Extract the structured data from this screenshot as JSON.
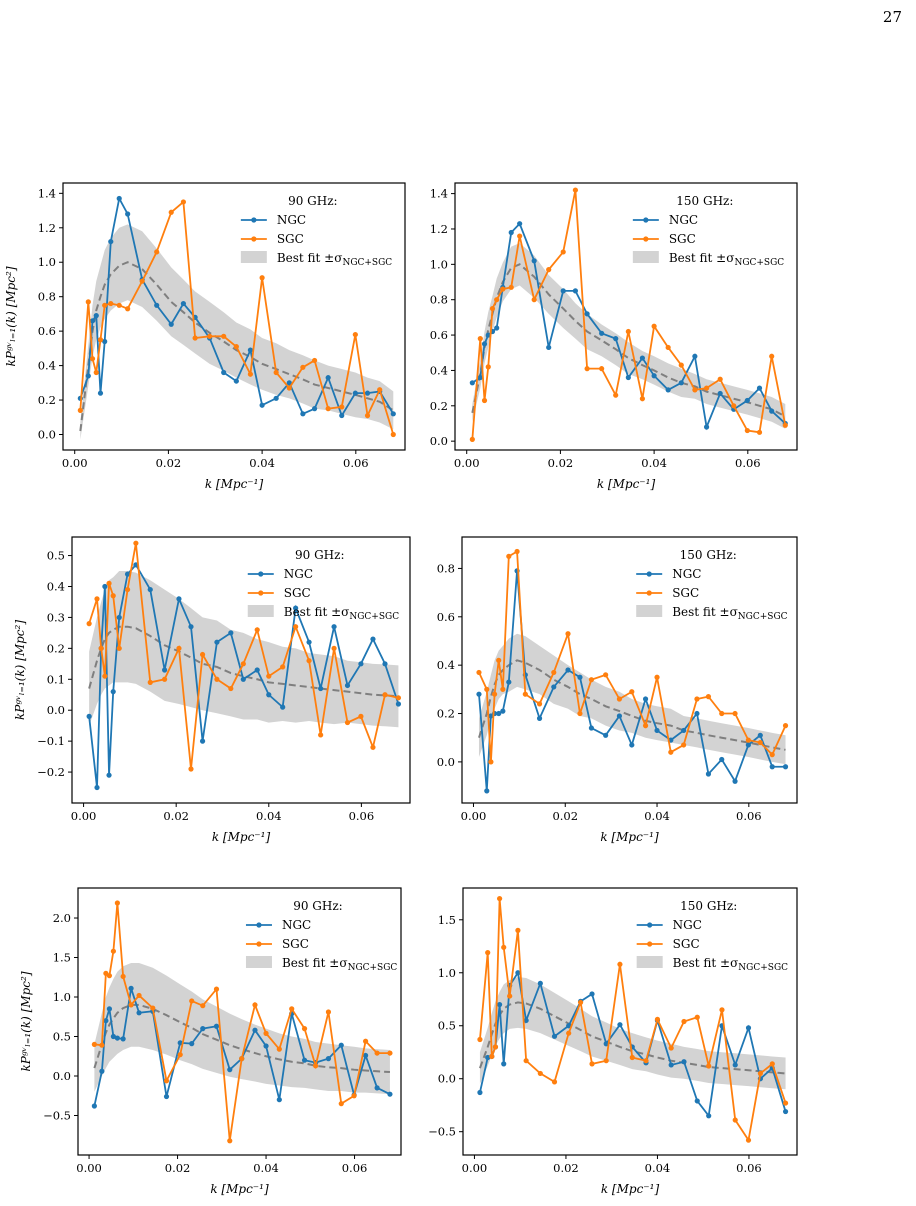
{
  "page": {
    "number": "27"
  },
  "legend": {
    "ngc": "NGC",
    "sgc": "SGC",
    "band_prefix": "Best fit ±σ",
    "band_sub": "NGC+SGC"
  },
  "colors": {
    "ngc": "#1f77b4",
    "sgc": "#ff7f0e",
    "band": "#d3d3d3",
    "fit": "#7f7f7f"
  },
  "chart_data": [
    {
      "type": "line",
      "title": "90 GHz:",
      "xlabel": "k [Mpc⁻¹]",
      "ylabel": "kPᵍᵛₗ₌₁(k) [Mpc²]",
      "xlim": [
        -0.0025,
        0.0705
      ],
      "ylim": [
        -0.09,
        1.46
      ],
      "xticks": [
        0.0,
        0.02,
        0.04,
        0.06
      ],
      "xtick_labels": [
        "0.00",
        "0.02",
        "0.04",
        "0.06"
      ],
      "yticks": [
        0.0,
        0.2,
        0.4,
        0.6,
        0.8,
        1.0,
        1.2,
        1.4
      ],
      "ytick_labels": [
        "0.0",
        "0.2",
        "0.4",
        "0.6",
        "0.8",
        "1.0",
        "1.2",
        "1.4"
      ],
      "legend_position": "upper-right",
      "x": [
        0.0012,
        0.0029,
        0.0038,
        0.0046,
        0.0055,
        0.0064,
        0.0077,
        0.0095,
        0.0113,
        0.0144,
        0.0175,
        0.0206,
        0.0232,
        0.0257,
        0.0288,
        0.0318,
        0.0345,
        0.0375,
        0.04,
        0.043,
        0.0458,
        0.0487,
        0.0512,
        0.0541,
        0.057,
        0.0599,
        0.0625,
        0.0651,
        0.068
      ],
      "series": [
        {
          "name": "NGC",
          "values": [
            0.21,
            0.34,
            0.66,
            0.69,
            0.24,
            0.54,
            1.12,
            1.37,
            1.28,
            0.9,
            0.75,
            0.64,
            0.76,
            0.68,
            0.56,
            0.36,
            0.31,
            0.49,
            0.17,
            0.21,
            0.3,
            0.12,
            0.15,
            0.33,
            0.11,
            0.24,
            0.24,
            0.25,
            0.12
          ]
        },
        {
          "name": "SGC",
          "values": [
            0.14,
            0.77,
            0.44,
            0.36,
            0.55,
            0.75,
            0.76,
            0.75,
            0.73,
            0.89,
            1.06,
            1.29,
            1.35,
            0.56,
            0.57,
            0.57,
            0.51,
            0.35,
            0.91,
            0.36,
            0.27,
            0.39,
            0.43,
            0.15,
            0.16,
            0.58,
            0.11,
            0.26,
            0.0
          ]
        }
      ],
      "fit": [
        0.02,
        0.4,
        0.6,
        0.72,
        0.8,
        0.87,
        0.93,
        0.98,
        1.0,
        0.96,
        0.87,
        0.77,
        0.71,
        0.65,
        0.59,
        0.54,
        0.49,
        0.45,
        0.41,
        0.38,
        0.35,
        0.32,
        0.29,
        0.27,
        0.25,
        0.23,
        0.21,
        0.19,
        0.14
      ],
      "band_halfwidth": [
        0.05,
        0.12,
        0.15,
        0.17,
        0.18,
        0.2,
        0.21,
        0.22,
        0.22,
        0.22,
        0.21,
        0.2,
        0.19,
        0.18,
        0.18,
        0.17,
        0.16,
        0.16,
        0.15,
        0.15,
        0.14,
        0.14,
        0.14,
        0.13,
        0.13,
        0.13,
        0.12,
        0.12,
        0.11
      ]
    },
    {
      "type": "line",
      "title": "150 GHz:",
      "xlabel": "k [Mpc⁻¹]",
      "ylabel": "",
      "xlim": [
        -0.0025,
        0.0705
      ],
      "ylim": [
        -0.05,
        1.46
      ],
      "xticks": [
        0.0,
        0.02,
        0.04,
        0.06
      ],
      "xtick_labels": [
        "0.00",
        "0.02",
        "0.04",
        "0.06"
      ],
      "yticks": [
        0.0,
        0.2,
        0.4,
        0.6,
        0.8,
        1.0,
        1.2,
        1.4
      ],
      "ytick_labels": [
        "0.0",
        "0.2",
        "0.4",
        "0.6",
        "0.8",
        "1.0",
        "1.2",
        "1.4"
      ],
      "legend_position": "upper-right",
      "x": [
        0.0012,
        0.0029,
        0.0038,
        0.0046,
        0.0055,
        0.0064,
        0.0077,
        0.0095,
        0.0113,
        0.0144,
        0.0175,
        0.0206,
        0.0232,
        0.0257,
        0.0288,
        0.0318,
        0.0345,
        0.0375,
        0.04,
        0.043,
        0.0458,
        0.0487,
        0.0512,
        0.0541,
        0.057,
        0.0599,
        0.0625,
        0.0651,
        0.068
      ],
      "series": [
        {
          "name": "NGC",
          "values": [
            0.33,
            0.36,
            0.55,
            0.6,
            0.62,
            0.64,
            0.87,
            1.18,
            1.23,
            1.02,
            0.53,
            0.85,
            0.85,
            0.72,
            0.61,
            0.58,
            0.36,
            0.47,
            0.37,
            0.29,
            0.33,
            0.48,
            0.08,
            0.27,
            0.18,
            0.23,
            0.3,
            0.17,
            0.1
          ]
        },
        {
          "name": "SGC",
          "values": [
            0.01,
            0.58,
            0.23,
            0.42,
            0.75,
            0.8,
            0.86,
            0.87,
            1.16,
            0.8,
            0.97,
            1.07,
            1.42,
            0.41,
            0.41,
            0.26,
            0.62,
            0.24,
            0.65,
            0.53,
            0.43,
            0.29,
            0.3,
            0.35,
            0.2,
            0.06,
            0.05,
            0.48,
            0.09
          ]
        }
      ],
      "fit": [
        0.16,
        0.38,
        0.53,
        0.63,
        0.72,
        0.81,
        0.9,
        0.98,
        1.0,
        0.93,
        0.83,
        0.75,
        0.68,
        0.62,
        0.57,
        0.52,
        0.47,
        0.43,
        0.4,
        0.36,
        0.33,
        0.31,
        0.28,
        0.26,
        0.24,
        0.22,
        0.2,
        0.18,
        0.14
      ],
      "band_halfwidth": [
        0.05,
        0.08,
        0.09,
        0.1,
        0.1,
        0.11,
        0.11,
        0.12,
        0.12,
        0.12,
        0.11,
        0.11,
        0.1,
        0.1,
        0.09,
        0.09,
        0.09,
        0.08,
        0.08,
        0.08,
        0.08,
        0.07,
        0.07,
        0.07,
        0.07,
        0.07,
        0.07,
        0.07,
        0.07
      ]
    },
    {
      "type": "line",
      "title": "90 GHz:",
      "xlabel": "k [Mpc⁻¹]",
      "ylabel": "kPᵍᵛₗ₌₁(k) [Mpc²]",
      "xlim": [
        -0.0025,
        0.0705
      ],
      "ylim": [
        -0.3,
        0.56
      ],
      "xticks": [
        0.0,
        0.02,
        0.04,
        0.06
      ],
      "xtick_labels": [
        "0.00",
        "0.02",
        "0.04",
        "0.06"
      ],
      "yticks": [
        -0.2,
        -0.1,
        0.0,
        0.1,
        0.2,
        0.3,
        0.4,
        0.5
      ],
      "ytick_labels": [
        "−0.2",
        "−0.1",
        "0.0",
        "0.1",
        "0.2",
        "0.3",
        "0.4",
        "0.5"
      ],
      "legend_position": "upper-right",
      "x": [
        0.0012,
        0.0029,
        0.0038,
        0.0046,
        0.0055,
        0.0064,
        0.0077,
        0.0095,
        0.0113,
        0.0144,
        0.0175,
        0.0206,
        0.0232,
        0.0257,
        0.0288,
        0.0318,
        0.0345,
        0.0375,
        0.04,
        0.043,
        0.0458,
        0.0487,
        0.0512,
        0.0541,
        0.057,
        0.0599,
        0.0625,
        0.0651,
        0.068
      ],
      "series": [
        {
          "name": "NGC",
          "values": [
            -0.02,
            -0.25,
            0.2,
            0.4,
            -0.21,
            0.06,
            0.3,
            0.44,
            0.47,
            0.39,
            0.13,
            0.36,
            0.27,
            -0.1,
            0.22,
            0.25,
            0.1,
            0.13,
            0.05,
            0.01,
            0.33,
            0.22,
            0.07,
            0.27,
            0.08,
            0.15,
            0.23,
            0.15,
            0.02
          ]
        },
        {
          "name": "SGC",
          "values": [
            0.28,
            0.36,
            0.2,
            0.11,
            0.41,
            0.37,
            0.2,
            0.39,
            0.54,
            0.09,
            0.1,
            0.2,
            -0.19,
            0.18,
            0.1,
            0.07,
            0.15,
            0.26,
            0.11,
            0.14,
            0.27,
            0.16,
            -0.08,
            0.2,
            -0.04,
            -0.02,
            -0.12,
            0.05,
            0.04
          ]
        }
      ],
      "fit": [
        0.07,
        0.16,
        0.2,
        0.23,
        0.25,
        0.26,
        0.27,
        0.27,
        0.265,
        0.24,
        0.21,
        0.19,
        0.17,
        0.15,
        0.14,
        0.12,
        0.11,
        0.1,
        0.09,
        0.085,
        0.08,
        0.075,
        0.07,
        0.065,
        0.06,
        0.055,
        0.05,
        0.048,
        0.045
      ],
      "band_halfwidth": [
        0.12,
        0.14,
        0.15,
        0.16,
        0.17,
        0.17,
        0.18,
        0.18,
        0.18,
        0.18,
        0.18,
        0.17,
        0.16,
        0.15,
        0.15,
        0.14,
        0.14,
        0.13,
        0.13,
        0.12,
        0.12,
        0.11,
        0.11,
        0.11,
        0.1,
        0.1,
        0.1,
        0.1,
        0.1
      ]
    },
    {
      "type": "line",
      "title": "150 GHz:",
      "xlabel": "k [Mpc⁻¹]",
      "ylabel": "",
      "xlim": [
        -0.0025,
        0.0705
      ],
      "ylim": [
        -0.17,
        0.93
      ],
      "xticks": [
        0.0,
        0.02,
        0.04,
        0.06
      ],
      "xtick_labels": [
        "0.00",
        "0.02",
        "0.04",
        "0.06"
      ],
      "yticks": [
        0.0,
        0.2,
        0.4,
        0.6,
        0.8
      ],
      "ytick_labels": [
        "0.0",
        "0.2",
        "0.4",
        "0.6",
        "0.8"
      ],
      "legend_position": "upper-right",
      "x": [
        0.0012,
        0.0029,
        0.0038,
        0.0046,
        0.0055,
        0.0064,
        0.0077,
        0.0095,
        0.0113,
        0.0144,
        0.0175,
        0.0206,
        0.0232,
        0.0257,
        0.0288,
        0.0318,
        0.0345,
        0.0375,
        0.04,
        0.043,
        0.0458,
        0.0487,
        0.0512,
        0.0541,
        0.057,
        0.0599,
        0.0625,
        0.0651,
        0.068
      ],
      "series": [
        {
          "name": "NGC",
          "values": [
            0.28,
            -0.12,
            0.19,
            0.2,
            0.2,
            0.21,
            0.33,
            0.79,
            0.36,
            0.18,
            0.31,
            0.38,
            0.35,
            0.14,
            0.11,
            0.19,
            0.07,
            0.26,
            0.13,
            0.09,
            0.13,
            0.2,
            -0.05,
            0.01,
            -0.08,
            0.07,
            0.11,
            -0.02,
            -0.02
          ]
        },
        {
          "name": "SGC",
          "values": [
            0.37,
            0.3,
            0.0,
            0.28,
            0.42,
            0.3,
            0.85,
            0.87,
            0.28,
            0.24,
            0.37,
            0.53,
            0.2,
            0.34,
            0.36,
            0.26,
            0.29,
            0.15,
            0.35,
            0.04,
            0.07,
            0.26,
            0.27,
            0.2,
            0.2,
            0.09,
            0.08,
            0.03,
            0.15
          ]
        }
      ],
      "fit": [
        0.1,
        0.2,
        0.27,
        0.32,
        0.36,
        0.38,
        0.4,
        0.42,
        0.41,
        0.38,
        0.34,
        0.31,
        0.28,
        0.26,
        0.23,
        0.21,
        0.19,
        0.17,
        0.16,
        0.15,
        0.13,
        0.12,
        0.11,
        0.1,
        0.09,
        0.08,
        0.07,
        0.06,
        0.05
      ],
      "band_halfwidth": [
        0.08,
        0.09,
        0.09,
        0.1,
        0.1,
        0.1,
        0.11,
        0.11,
        0.11,
        0.1,
        0.1,
        0.09,
        0.09,
        0.08,
        0.08,
        0.08,
        0.07,
        0.07,
        0.07,
        0.07,
        0.06,
        0.06,
        0.06,
        0.06,
        0.06,
        0.06,
        0.06,
        0.06,
        0.06
      ]
    },
    {
      "type": "line",
      "title": "90 GHz:",
      "xlabel": "k [Mpc⁻¹]",
      "ylabel": "kPᵍᵛₗ₌₁(k) [Mpc²]",
      "xlim": [
        -0.0025,
        0.0705
      ],
      "ylim": [
        -1.0,
        2.38
      ],
      "xticks": [
        0.0,
        0.02,
        0.04,
        0.06
      ],
      "xtick_labels": [
        "0.00",
        "0.02",
        "0.04",
        "0.06"
      ],
      "yticks": [
        -0.5,
        0.0,
        0.5,
        1.0,
        1.5,
        2.0
      ],
      "ytick_labels": [
        "−0.5",
        "0.0",
        "0.5",
        "1.0",
        "1.5",
        "2.0"
      ],
      "legend_position": "upper-right",
      "x": [
        0.0012,
        0.0029,
        0.0038,
        0.0046,
        0.0055,
        0.0064,
        0.0077,
        0.0095,
        0.0113,
        0.0144,
        0.0175,
        0.0206,
        0.0232,
        0.0257,
        0.0288,
        0.0318,
        0.0345,
        0.0375,
        0.04,
        0.043,
        0.0458,
        0.0487,
        0.0512,
        0.0541,
        0.057,
        0.0599,
        0.0625,
        0.0651,
        0.068
      ],
      "series": [
        {
          "name": "NGC",
          "values": [
            -0.38,
            0.06,
            0.7,
            0.85,
            0.5,
            0.48,
            0.47,
            1.11,
            0.8,
            0.82,
            -0.26,
            0.42,
            0.41,
            0.6,
            0.63,
            0.08,
            0.22,
            0.58,
            0.38,
            -0.3,
            0.79,
            0.2,
            0.17,
            0.22,
            0.39,
            -0.24,
            0.26,
            -0.15,
            -0.23
          ]
        },
        {
          "name": "SGC",
          "values": [
            0.4,
            0.39,
            1.3,
            1.27,
            1.58,
            2.19,
            1.26,
            0.9,
            1.02,
            0.86,
            -0.06,
            0.27,
            0.95,
            0.89,
            1.1,
            -0.82,
            0.22,
            0.9,
            0.54,
            0.34,
            0.85,
            0.6,
            0.13,
            0.81,
            -0.35,
            -0.25,
            0.44,
            0.29,
            0.29
          ]
        }
      ],
      "fit": [
        0.1,
        0.4,
        0.55,
        0.65,
        0.73,
        0.8,
        0.86,
        0.9,
        0.9,
        0.85,
        0.77,
        0.68,
        0.61,
        0.53,
        0.46,
        0.39,
        0.34,
        0.29,
        0.25,
        0.21,
        0.18,
        0.16,
        0.13,
        0.11,
        0.1,
        0.08,
        0.07,
        0.06,
        0.05
      ],
      "band_halfwidth": [
        0.3,
        0.4,
        0.45,
        0.47,
        0.5,
        0.52,
        0.53,
        0.53,
        0.53,
        0.52,
        0.5,
        0.48,
        0.46,
        0.44,
        0.42,
        0.4,
        0.38,
        0.36,
        0.35,
        0.33,
        0.32,
        0.31,
        0.3,
        0.3,
        0.29,
        0.29,
        0.28,
        0.28,
        0.28
      ]
    },
    {
      "type": "line",
      "title": "150 GHz:",
      "xlabel": "k [Mpc⁻¹]",
      "ylabel": "",
      "xlim": [
        -0.0025,
        0.0705
      ],
      "ylim": [
        -0.72,
        1.8
      ],
      "xticks": [
        0.0,
        0.02,
        0.04,
        0.06
      ],
      "xtick_labels": [
        "0.00",
        "0.02",
        "0.04",
        "0.06"
      ],
      "yticks": [
        -0.5,
        0.0,
        0.5,
        1.0,
        1.5
      ],
      "ytick_labels": [
        "−0.5",
        "0.0",
        "0.5",
        "1.0",
        "1.5"
      ],
      "legend_position": "upper-right",
      "x": [
        0.0012,
        0.0029,
        0.0038,
        0.0046,
        0.0055,
        0.0064,
        0.0077,
        0.0095,
        0.0113,
        0.0144,
        0.0175,
        0.0206,
        0.0232,
        0.0257,
        0.0288,
        0.0318,
        0.0345,
        0.0375,
        0.04,
        0.043,
        0.0458,
        0.0487,
        0.0512,
        0.0541,
        0.057,
        0.0599,
        0.0625,
        0.0651,
        0.068
      ],
      "series": [
        {
          "name": "NGC",
          "values": [
            -0.13,
            0.2,
            0.21,
            0.3,
            0.7,
            0.14,
            0.88,
            1.0,
            0.55,
            0.9,
            0.4,
            0.5,
            0.73,
            0.8,
            0.33,
            0.51,
            0.3,
            0.15,
            0.55,
            0.13,
            0.16,
            -0.21,
            -0.35,
            0.5,
            0.13,
            0.48,
            0.0,
            0.1,
            -0.31
          ]
        },
        {
          "name": "SGC",
          "values": [
            0.37,
            1.19,
            0.21,
            0.3,
            1.7,
            1.24,
            0.78,
            1.4,
            0.17,
            0.05,
            -0.03,
            0.43,
            0.72,
            0.14,
            0.17,
            1.08,
            0.2,
            0.17,
            0.56,
            0.29,
            0.54,
            0.58,
            0.12,
            0.65,
            -0.39,
            -0.58,
            0.05,
            0.14,
            -0.23
          ]
        }
      ],
      "fit": [
        0.1,
        0.3,
        0.42,
        0.52,
        0.6,
        0.66,
        0.7,
        0.72,
        0.71,
        0.66,
        0.59,
        0.52,
        0.46,
        0.4,
        0.35,
        0.3,
        0.26,
        0.23,
        0.2,
        0.17,
        0.15,
        0.13,
        0.11,
        0.1,
        0.09,
        0.08,
        0.07,
        0.06,
        0.05
      ],
      "band_halfwidth": [
        0.15,
        0.18,
        0.2,
        0.21,
        0.22,
        0.23,
        0.23,
        0.24,
        0.24,
        0.23,
        0.22,
        0.21,
        0.2,
        0.19,
        0.18,
        0.17,
        0.17,
        0.16,
        0.16,
        0.16,
        0.15,
        0.15,
        0.15,
        0.15,
        0.15,
        0.15,
        0.15,
        0.15,
        0.15
      ]
    }
  ]
}
